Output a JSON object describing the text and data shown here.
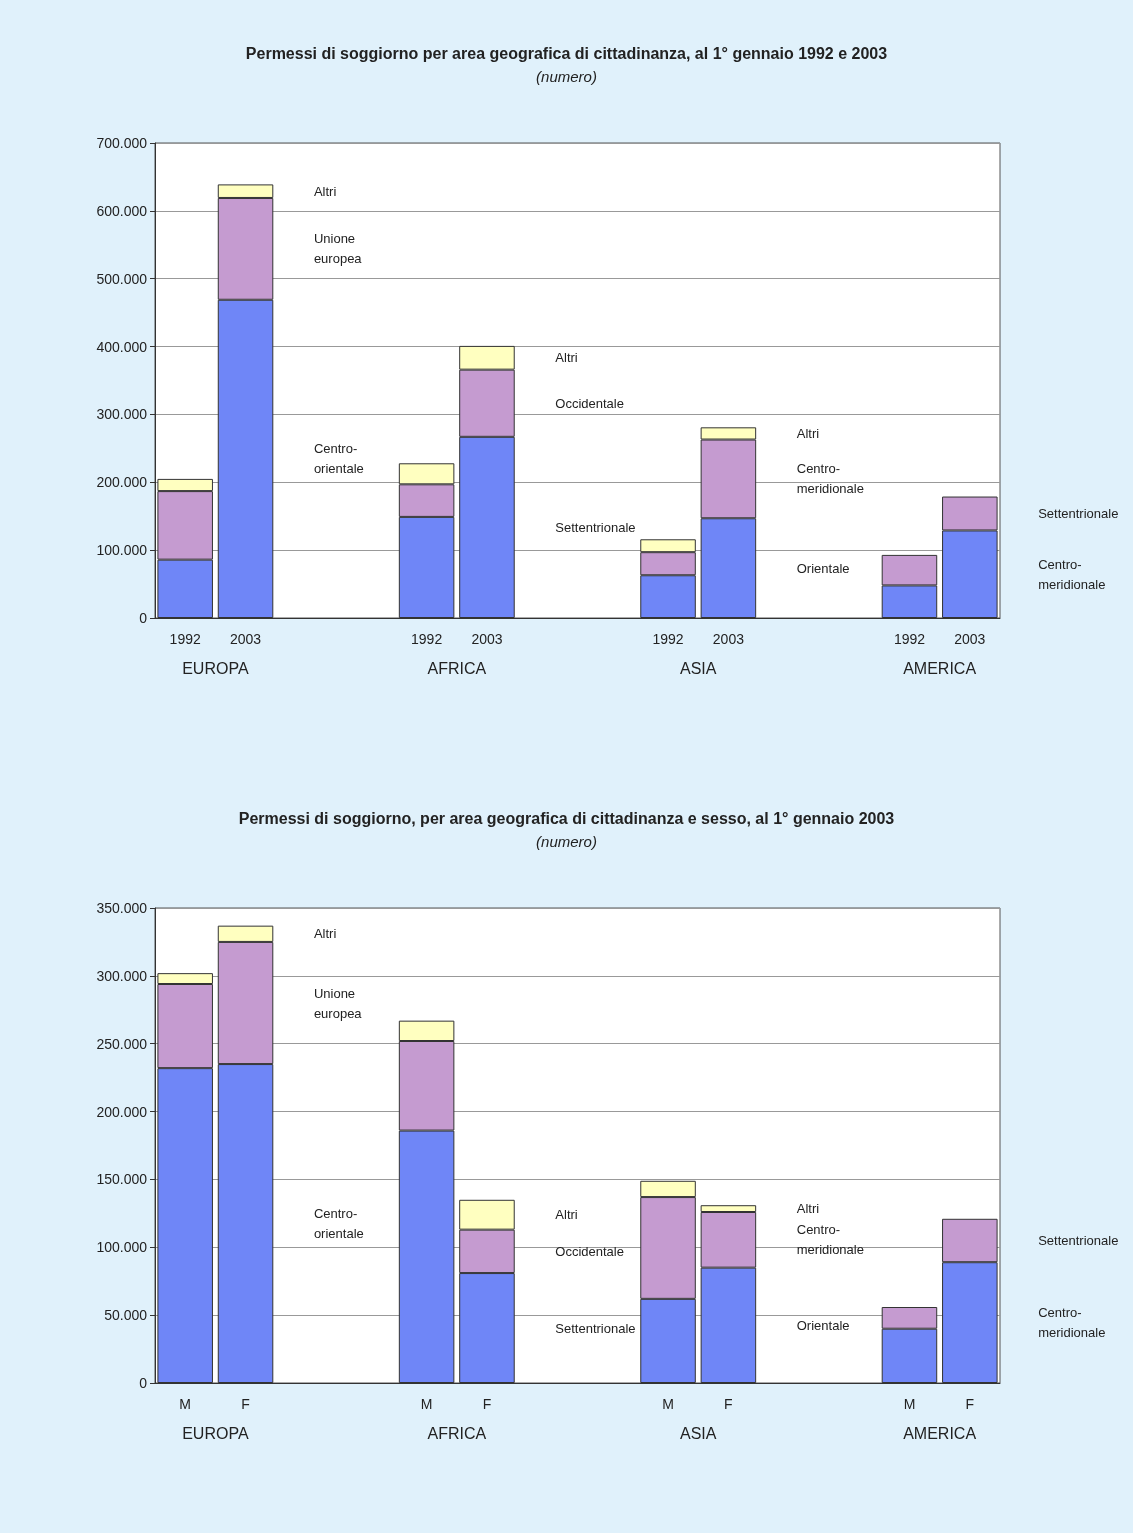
{
  "chart_data": [
    {
      "type": "bar",
      "title": "Permessi di soggiorno per area geografica di cittadinanza, al 1° gennaio 1992 e 2003",
      "subtitle": "(numero)",
      "stacked": true,
      "grid": "y",
      "categories": [
        "1992",
        "2003",
        null,
        null,
        "1992",
        "2003",
        null,
        null,
        "1992",
        "2003",
        null,
        null,
        "1992",
        "2003"
      ],
      "series": [
        {
          "color": "#6f86f7",
          "values": [
            86000,
            469000,
            null,
            null,
            149000,
            267000,
            null,
            null,
            63000,
            147000,
            null,
            null,
            48000,
            129000
          ]
        },
        {
          "color": "#c59bd0",
          "values": [
            101000,
            150000,
            null,
            null,
            48000,
            99000,
            null,
            null,
            34000,
            116000,
            null,
            null,
            45000,
            50000
          ]
        },
        {
          "color": "#ffffc0",
          "values": [
            18000,
            20000,
            null,
            null,
            31000,
            35000,
            null,
            null,
            19000,
            18000,
            null,
            null,
            null,
            null
          ]
        }
      ],
      "ylim": [
        0,
        700000
      ],
      "yticks": [
        0,
        {
          "value": 100000,
          "label": "100.000"
        },
        {
          "value": 200000,
          "label": "200.000"
        },
        {
          "value": 300000,
          "label": "300.000"
        },
        {
          "value": 400000,
          "label": "400.000"
        },
        {
          "value": 500000,
          "label": "500.000"
        },
        {
          "value": 600000,
          "label": "600.000"
        },
        {
          "value": 700000,
          "label": "700.000"
        }
      ],
      "annotations": [
        "EUROPA",
        "Altri",
        "Unione\neuropea",
        "Centro-\norientale",
        "AFRICA",
        "Altri",
        "Occidentale",
        "Settentrionale",
        "ASIA",
        "Altri",
        "Centro-\nmeridionale",
        "Orientale",
        "AMERICA",
        "Settentrionale",
        "Centro-\nmeridionale"
      ]
    },
    {
      "type": "bar",
      "title": "Permessi di soggiorno, per area geografica di cittadinanza e sesso, al 1° gennaio 2003",
      "subtitle": "(numero)",
      "stacked": true,
      "grid": "y",
      "categories": [
        "M",
        "F",
        null,
        null,
        "M",
        "F",
        null,
        null,
        "M",
        "F",
        null,
        null,
        "M",
        "F"
      ],
      "series": [
        {
          "color": "#6f86f7",
          "values": [
            232000,
            235000,
            null,
            null,
            186000,
            81000,
            null,
            null,
            62000,
            85000,
            null,
            null,
            40000,
            89000
          ]
        },
        {
          "color": "#c59bd0",
          "values": [
            62000,
            90000,
            null,
            null,
            66000,
            32000,
            null,
            null,
            75000,
            41000,
            null,
            null,
            16000,
            32000
          ]
        },
        {
          "color": "#ffffc0",
          "values": [
            8000,
            12000,
            null,
            null,
            15000,
            22000,
            null,
            null,
            12000,
            5000,
            null,
            null,
            null,
            null
          ]
        }
      ],
      "ylim": [
        0,
        350000
      ],
      "yticks": [
        0,
        {
          "value": 50000,
          "label": "50.000"
        },
        {
          "value": 100000,
          "label": "100.000"
        },
        {
          "value": 150000,
          "label": "150.000"
        },
        {
          "value": 200000,
          "label": "200.000"
        },
        {
          "value": 250000,
          "label": "250.000"
        },
        {
          "value": 300000,
          "label": "300.000"
        },
        {
          "value": 350000,
          "label": "350.000"
        }
      ],
      "annotations": [
        "EUROPA",
        "Altri",
        "Unione\neuropea",
        "Centro-\norientale",
        "AFRICA",
        "Altri",
        "Occidentale",
        "Settentrionale",
        "ASIA",
        "Altri",
        "Centro-\nmeridionale",
        "Orientale",
        "AMERICA",
        "Settentrionale",
        "Centro-\nmeridionale"
      ]
    }
  ]
}
